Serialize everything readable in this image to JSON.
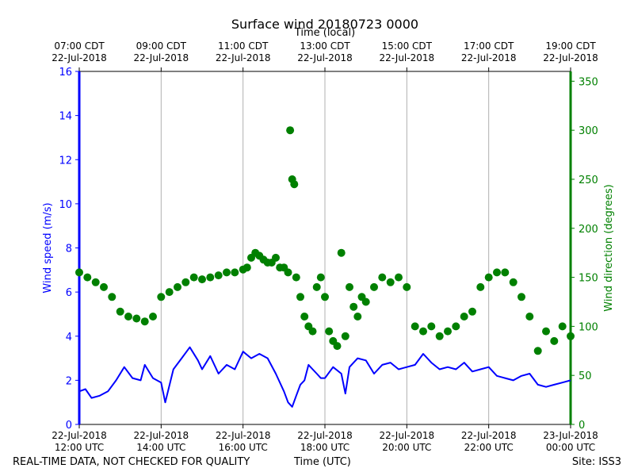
{
  "chart_data": {
    "type": "scatter",
    "title": "Surface wind 20180723 0000",
    "x_top_label": "Time (local)",
    "xlabel": "Time (UTC)",
    "ylabel_left": "Wind speed (m/s)",
    "ylabel_right": "Wind direction (degrees)",
    "ylim_left": [
      0,
      16
    ],
    "ylim_right": [
      0,
      360
    ],
    "yticks_left": [
      "0",
      "2",
      "4",
      "6",
      "8",
      "10",
      "12",
      "14",
      "16"
    ],
    "yticks_right": [
      "0",
      "50",
      "100",
      "150",
      "200",
      "250",
      "300",
      "350"
    ],
    "x_range_hours_utc": [
      12,
      24
    ],
    "x_ticks_utc": [
      {
        "h": 12,
        "line1": "22-Jul-2018",
        "line2": "12:00 UTC"
      },
      {
        "h": 14,
        "line1": "22-Jul-2018",
        "line2": "14:00 UTC"
      },
      {
        "h": 16,
        "line1": "22-Jul-2018",
        "line2": "16:00 UTC"
      },
      {
        "h": 18,
        "line1": "22-Jul-2018",
        "line2": "18:00 UTC"
      },
      {
        "h": 20,
        "line1": "22-Jul-2018",
        "line2": "20:00 UTC"
      },
      {
        "h": 22,
        "line1": "22-Jul-2018",
        "line2": "22:00 UTC"
      },
      {
        "h": 24,
        "line1": "23-Jul-2018",
        "line2": "00:00 UTC"
      }
    ],
    "x_ticks_local": [
      {
        "h": 12,
        "line1": "07:00 CDT",
        "line2": "22-Jul-2018"
      },
      {
        "h": 14,
        "line1": "09:00 CDT",
        "line2": "22-Jul-2018"
      },
      {
        "h": 16,
        "line1": "11:00 CDT",
        "line2": "22-Jul-2018"
      },
      {
        "h": 18,
        "line1": "13:00 CDT",
        "line2": "22-Jul-2018"
      },
      {
        "h": 20,
        "line1": "15:00 CDT",
        "line2": "22-Jul-2018"
      },
      {
        "h": 22,
        "line1": "17:00 CDT",
        "line2": "22-Jul-2018"
      },
      {
        "h": 24,
        "line1": "19:00 CDT",
        "line2": "22-Jul-2018"
      }
    ],
    "series": [
      {
        "name": "Wind speed",
        "axis": "left",
        "style": "line",
        "color": "#0000ff",
        "points": [
          [
            12.0,
            1.5
          ],
          [
            12.15,
            1.6
          ],
          [
            12.3,
            1.2
          ],
          [
            12.5,
            1.3
          ],
          [
            12.7,
            1.5
          ],
          [
            12.9,
            2.0
          ],
          [
            13.1,
            2.6
          ],
          [
            13.3,
            2.1
          ],
          [
            13.5,
            2.0
          ],
          [
            13.6,
            2.7
          ],
          [
            13.8,
            2.1
          ],
          [
            14.0,
            1.9
          ],
          [
            14.1,
            1.0
          ],
          [
            14.3,
            2.5
          ],
          [
            14.5,
            3.0
          ],
          [
            14.7,
            3.5
          ],
          [
            14.9,
            2.9
          ],
          [
            15.0,
            2.5
          ],
          [
            15.2,
            3.1
          ],
          [
            15.4,
            2.3
          ],
          [
            15.6,
            2.7
          ],
          [
            15.8,
            2.5
          ],
          [
            16.0,
            3.3
          ],
          [
            16.2,
            3.0
          ],
          [
            16.4,
            3.2
          ],
          [
            16.6,
            3.0
          ],
          [
            16.8,
            2.3
          ],
          [
            17.0,
            1.5
          ],
          [
            17.1,
            1.0
          ],
          [
            17.2,
            0.8
          ],
          [
            17.3,
            1.3
          ],
          [
            17.4,
            1.8
          ],
          [
            17.5,
            2.0
          ],
          [
            17.6,
            2.7
          ],
          [
            17.7,
            2.5
          ],
          [
            17.8,
            2.3
          ],
          [
            17.9,
            2.1
          ],
          [
            18.0,
            2.1
          ],
          [
            18.2,
            2.6
          ],
          [
            18.4,
            2.3
          ],
          [
            18.5,
            1.4
          ],
          [
            18.6,
            2.6
          ],
          [
            18.8,
            3.0
          ],
          [
            19.0,
            2.9
          ],
          [
            19.2,
            2.3
          ],
          [
            19.4,
            2.7
          ],
          [
            19.6,
            2.8
          ],
          [
            19.8,
            2.5
          ],
          [
            20.0,
            2.6
          ],
          [
            20.2,
            2.7
          ],
          [
            20.4,
            3.2
          ],
          [
            20.6,
            2.8
          ],
          [
            20.8,
            2.5
          ],
          [
            21.0,
            2.6
          ],
          [
            21.2,
            2.5
          ],
          [
            21.4,
            2.8
          ],
          [
            21.6,
            2.4
          ],
          [
            21.8,
            2.5
          ],
          [
            22.0,
            2.6
          ],
          [
            22.2,
            2.2
          ],
          [
            22.4,
            2.1
          ],
          [
            22.6,
            2.0
          ],
          [
            22.8,
            2.2
          ],
          [
            23.0,
            2.3
          ],
          [
            23.2,
            1.8
          ],
          [
            23.4,
            1.7
          ],
          [
            23.6,
            1.8
          ],
          [
            23.8,
            1.9
          ],
          [
            24.0,
            2.0
          ]
        ]
      },
      {
        "name": "Wind direction",
        "axis": "right",
        "style": "markers",
        "color": "#008000",
        "points": [
          [
            12.0,
            155
          ],
          [
            12.2,
            150
          ],
          [
            12.4,
            145
          ],
          [
            12.6,
            140
          ],
          [
            12.8,
            130
          ],
          [
            13.0,
            115
          ],
          [
            13.2,
            110
          ],
          [
            13.4,
            108
          ],
          [
            13.6,
            105
          ],
          [
            13.8,
            110
          ],
          [
            14.0,
            130
          ],
          [
            14.2,
            135
          ],
          [
            14.4,
            140
          ],
          [
            14.6,
            145
          ],
          [
            14.8,
            150
          ],
          [
            15.0,
            148
          ],
          [
            15.2,
            150
          ],
          [
            15.4,
            152
          ],
          [
            15.6,
            155
          ],
          [
            15.8,
            155
          ],
          [
            16.0,
            158
          ],
          [
            16.1,
            160
          ],
          [
            16.2,
            170
          ],
          [
            16.3,
            175
          ],
          [
            16.4,
            172
          ],
          [
            16.5,
            168
          ],
          [
            16.6,
            165
          ],
          [
            16.7,
            165
          ],
          [
            16.8,
            170
          ],
          [
            16.9,
            160
          ],
          [
            17.0,
            160
          ],
          [
            17.1,
            155
          ],
          [
            17.15,
            300
          ],
          [
            17.2,
            250
          ],
          [
            17.25,
            245
          ],
          [
            17.3,
            150
          ],
          [
            17.4,
            130
          ],
          [
            17.5,
            110
          ],
          [
            17.6,
            100
          ],
          [
            17.7,
            95
          ],
          [
            17.8,
            140
          ],
          [
            17.9,
            150
          ],
          [
            18.0,
            130
          ],
          [
            18.1,
            95
          ],
          [
            18.2,
            85
          ],
          [
            18.3,
            80
          ],
          [
            18.4,
            175
          ],
          [
            18.5,
            90
          ],
          [
            18.6,
            140
          ],
          [
            18.7,
            120
          ],
          [
            18.8,
            110
          ],
          [
            18.9,
            130
          ],
          [
            19.0,
            125
          ],
          [
            19.2,
            140
          ],
          [
            19.4,
            150
          ],
          [
            19.6,
            145
          ],
          [
            19.8,
            150
          ],
          [
            20.0,
            140
          ],
          [
            20.2,
            100
          ],
          [
            20.4,
            95
          ],
          [
            20.6,
            100
          ],
          [
            20.8,
            90
          ],
          [
            21.0,
            95
          ],
          [
            21.2,
            100
          ],
          [
            21.4,
            110
          ],
          [
            21.6,
            115
          ],
          [
            21.8,
            140
          ],
          [
            22.0,
            150
          ],
          [
            22.2,
            155
          ],
          [
            22.4,
            155
          ],
          [
            22.6,
            145
          ],
          [
            22.8,
            130
          ],
          [
            23.0,
            110
          ],
          [
            23.2,
            75
          ],
          [
            23.4,
            95
          ],
          [
            23.6,
            85
          ],
          [
            23.8,
            100
          ],
          [
            24.0,
            90
          ]
        ]
      }
    ]
  },
  "footer": {
    "left": "REAL-TIME DATA, NOT CHECKED FOR QUALITY",
    "center": "Time (UTC)",
    "right": "Site: ISS3"
  },
  "colors": {
    "speed": "#0000ff",
    "direction": "#008000",
    "grid": "#b0b0b0",
    "axis": "#000000"
  }
}
